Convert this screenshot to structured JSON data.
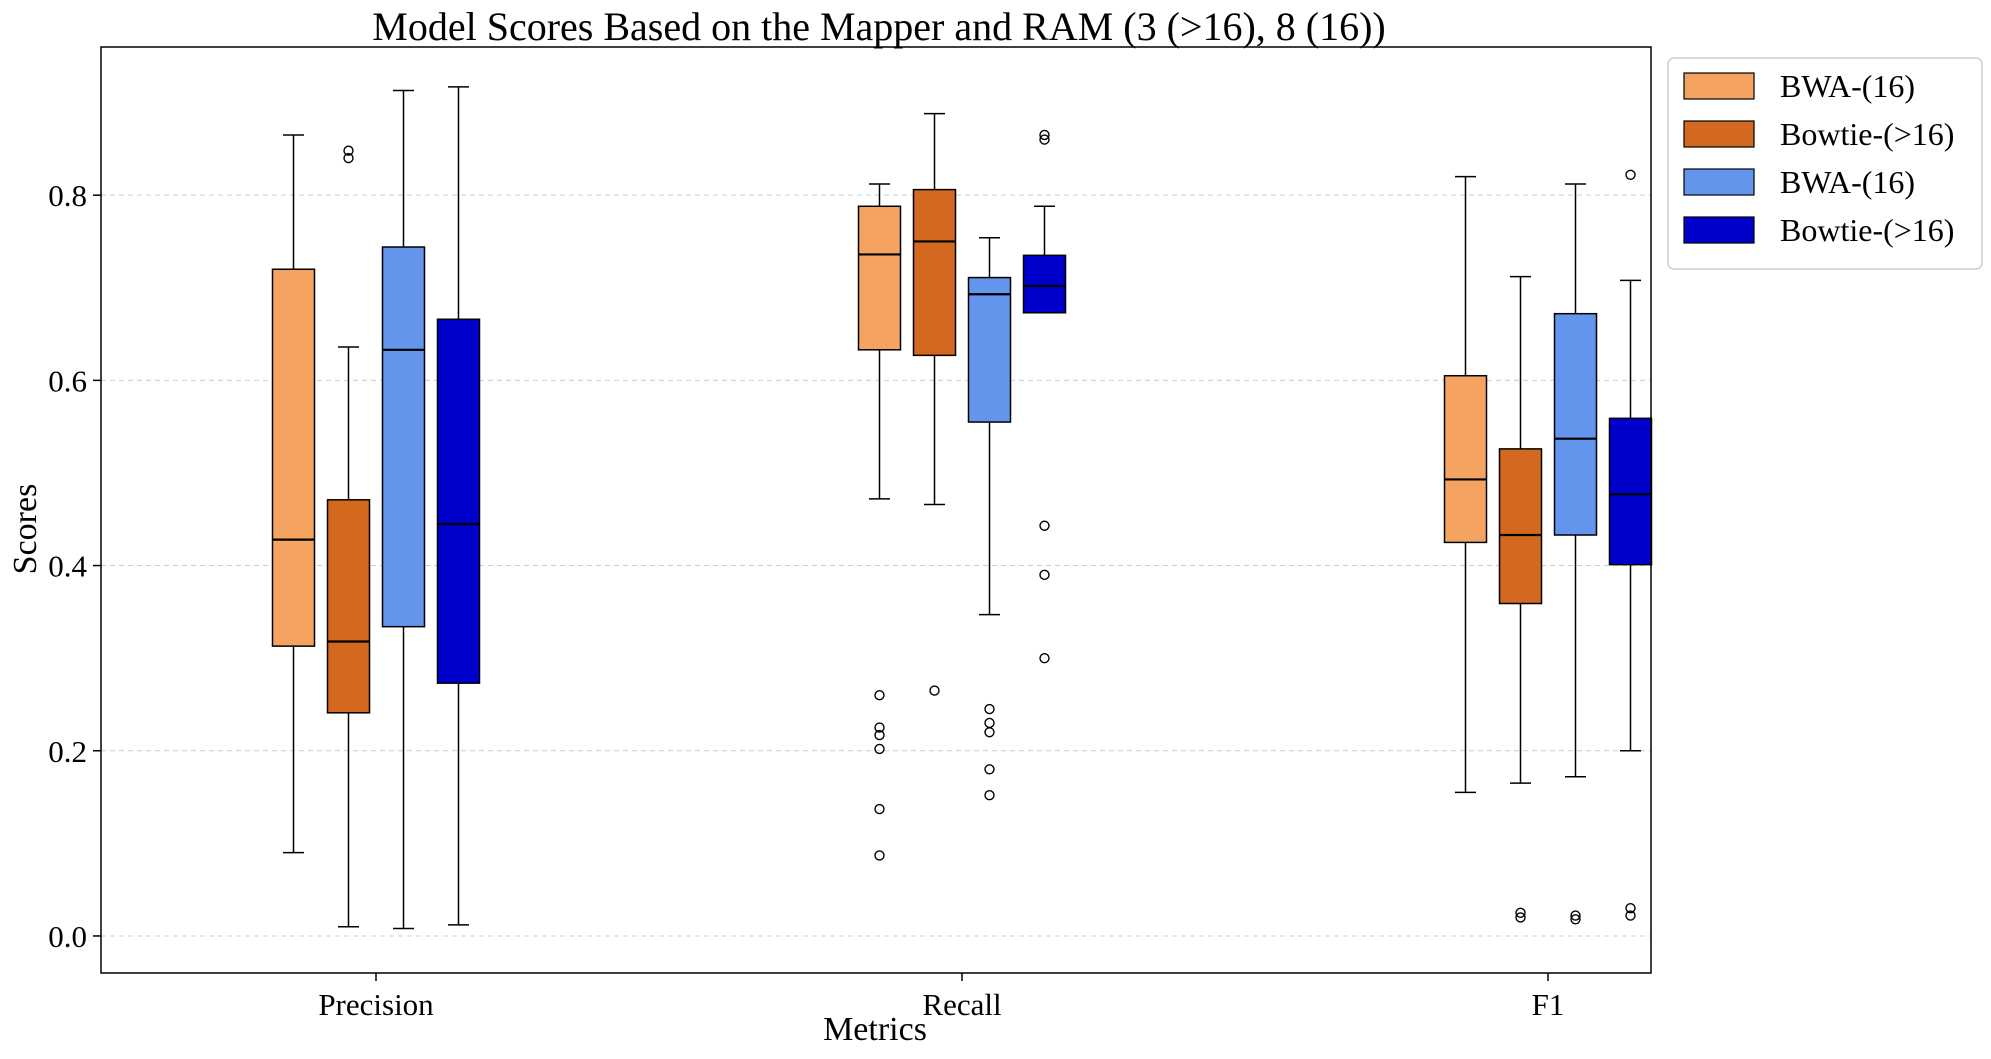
{
  "chart_data": {
    "type": "box",
    "title": "Model Scores Based on the Mapper and RAM (3 (>16), 8 (16))",
    "xlabel": "Metrics",
    "ylabel": "Scores",
    "ylim": [
      -0.04,
      0.96
    ],
    "yticks": [
      0.0,
      0.2,
      0.4,
      0.6,
      0.8
    ],
    "ytick_labels": [
      "0.0",
      "0.2",
      "0.4",
      "0.6",
      "0.8"
    ],
    "grid": "horizontal dashed",
    "legend_position": "upper-right, outside plot",
    "categories": [
      "Precision",
      "Recall",
      "F1"
    ],
    "series": [
      {
        "name": "BWA-(16)",
        "color": "#F4A460",
        "boxes": [
          {
            "whislo": 0.09,
            "q1": 0.313,
            "med": 0.428,
            "q3": 0.72,
            "whishi": 0.865,
            "fliers": []
          },
          {
            "whislo": 0.472,
            "q1": 0.633,
            "med": 0.736,
            "q3": 0.788,
            "whishi": 0.812,
            "fliers": [
              0.26,
              0.225,
              0.217,
              0.202,
              0.137,
              0.087
            ]
          },
          {
            "whislo": 0.155,
            "q1": 0.425,
            "med": 0.493,
            "q3": 0.605,
            "whishi": 0.82,
            "fliers": []
          }
        ]
      },
      {
        "name": "Bowtie-(>16)",
        "color": "#D2691E",
        "boxes": [
          {
            "whislo": 0.01,
            "q1": 0.241,
            "med": 0.318,
            "q3": 0.471,
            "whishi": 0.636,
            "fliers": [
              0.848,
              0.84
            ]
          },
          {
            "whislo": 0.466,
            "q1": 0.627,
            "med": 0.75,
            "q3": 0.806,
            "whishi": 0.888,
            "fliers": [
              0.265
            ]
          },
          {
            "whislo": 0.165,
            "q1": 0.359,
            "med": 0.433,
            "q3": 0.526,
            "whishi": 0.712,
            "fliers": [
              0.025,
              0.02
            ]
          }
        ]
      },
      {
        "name": "BWA-(16)",
        "color": "#6495ED",
        "boxes": [
          {
            "whislo": 0.008,
            "q1": 0.334,
            "med": 0.633,
            "q3": 0.744,
            "whishi": 0.913,
            "fliers": []
          },
          {
            "whislo": 0.347,
            "q1": 0.555,
            "med": 0.693,
            "q3": 0.711,
            "whishi": 0.754,
            "fliers": [
              0.245,
              0.23,
              0.22,
              0.18,
              0.152
            ]
          },
          {
            "whislo": 0.172,
            "q1": 0.433,
            "med": 0.537,
            "q3": 0.672,
            "whishi": 0.812,
            "fliers": [
              0.022,
              0.018
            ]
          }
        ]
      },
      {
        "name": "Bowtie-(>16)",
        "color": "#0000CD",
        "boxes": [
          {
            "whislo": 0.012,
            "q1": 0.273,
            "med": 0.445,
            "q3": 0.666,
            "whishi": 0.917,
            "fliers": []
          },
          {
            "whislo": 0.673,
            "q1": 0.673,
            "med": 0.702,
            "q3": 0.735,
            "whishi": 0.788,
            "fliers": [
              0.865,
              0.86,
              0.443,
              0.39,
              0.3
            ]
          },
          {
            "whislo": 0.2,
            "q1": 0.401,
            "med": 0.477,
            "q3": 0.559,
            "whishi": 0.708,
            "fliers": [
              0.822,
              0.03,
              0.022
            ]
          }
        ]
      }
    ]
  }
}
